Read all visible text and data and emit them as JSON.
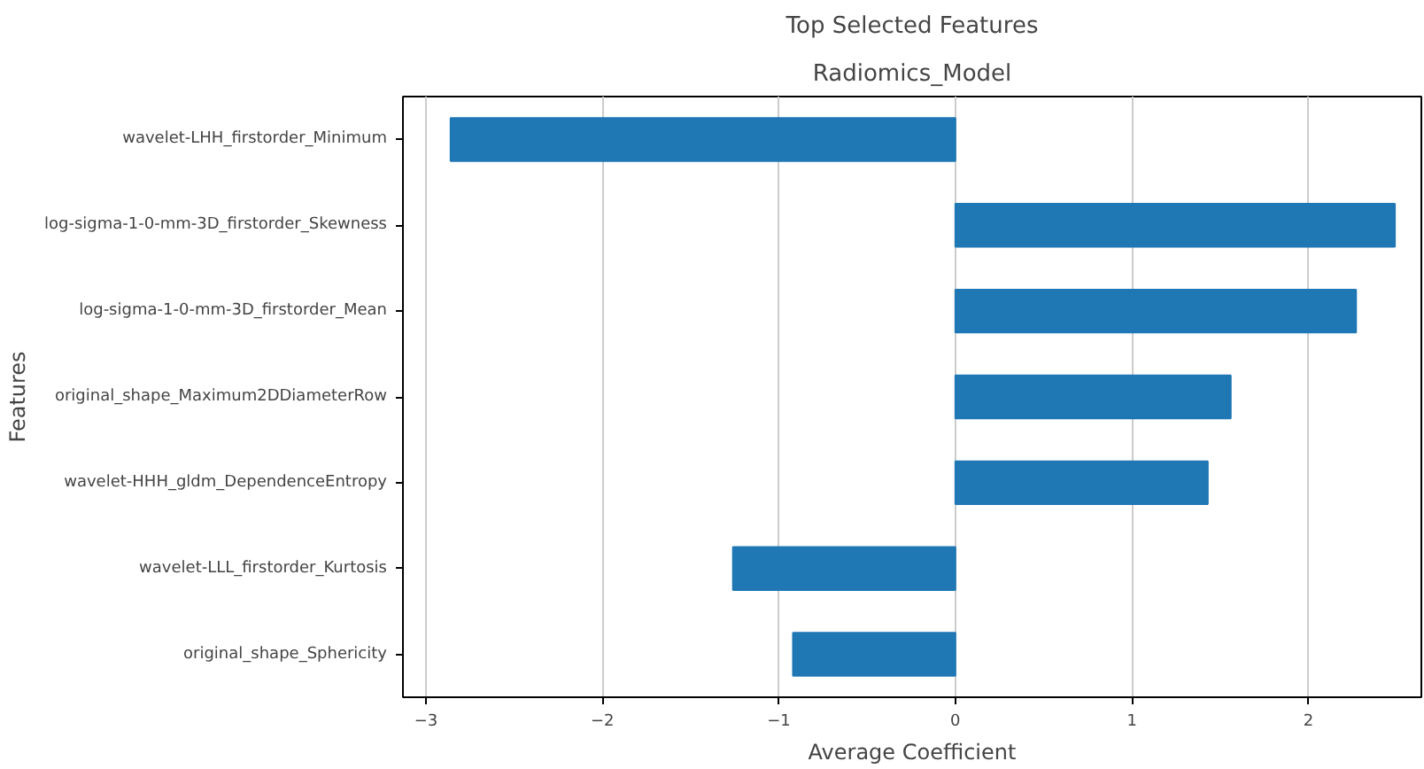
{
  "chart_data": {
    "type": "bar",
    "orientation": "horizontal",
    "title": "Top Selected Features",
    "subtitle": "Radiomics_Model",
    "xlabel": "Average Coefficient",
    "ylabel": "Features",
    "categories": [
      "wavelet-LHH_firstorder_Minimum",
      "log-sigma-1-0-mm-3D_firstorder_Skewness",
      "log-sigma-1-0-mm-3D_firstorder_Mean",
      "original_shape_Maximum2DDiameterRow",
      "wavelet-HHH_gldm_DependenceEntropy",
      "wavelet-LLL_firstorder_Kurtosis",
      "original_shape_Sphericity"
    ],
    "values": [
      -2.86,
      2.49,
      2.27,
      1.56,
      1.43,
      -1.26,
      -0.92
    ],
    "color": "#1f77b4",
    "xlim": [
      -3.13,
      2.64
    ],
    "xticks": [
      -3,
      -2,
      -1,
      0,
      1,
      2
    ],
    "grid": "x"
  }
}
